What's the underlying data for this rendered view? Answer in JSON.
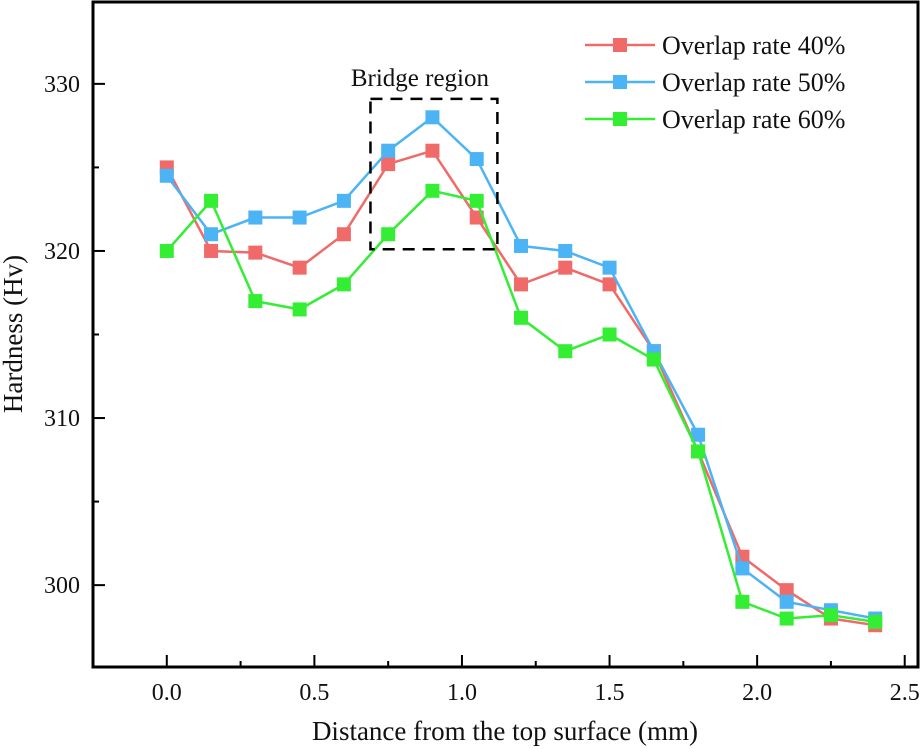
{
  "chart_data": {
    "type": "line",
    "title": "",
    "xlabel": "Distance from the top surface (mm)",
    "ylabel": "Hardness (Hv)",
    "xlim": [
      -0.25,
      2.545
    ],
    "ylim": [
      295.1,
      334.9
    ],
    "xticks": [
      0.0,
      0.5,
      1.0,
      1.5,
      2.0,
      2.5
    ],
    "xtick_labels": [
      "0.0",
      "0.5",
      "1.0",
      "1.5",
      "2.0",
      "2.5"
    ],
    "x_minor_ticks": [
      0.25,
      0.75,
      1.25,
      1.75,
      2.25
    ],
    "yticks": [
      300,
      310,
      320,
      330
    ],
    "ytick_labels": [
      "300",
      "310",
      "320",
      "330"
    ],
    "y_minor_ticks": [
      305,
      315,
      325
    ],
    "grid": false,
    "legend_position": "top-right",
    "x": [
      0.0,
      0.15,
      0.3,
      0.45,
      0.6,
      0.75,
      0.9,
      1.05,
      1.2,
      1.35,
      1.5,
      1.65,
      1.8,
      1.95,
      2.1,
      2.25,
      2.4
    ],
    "series": [
      {
        "name": "Overlap rate 40%",
        "color": "#f06a6a",
        "marker": "square",
        "values": [
          325.0,
          320.0,
          319.9,
          319.0,
          321.0,
          325.2,
          326.0,
          322.0,
          318.0,
          319.0,
          318.0,
          314.0,
          308.0,
          301.7,
          299.7,
          298.0,
          297.6
        ]
      },
      {
        "name": "Overlap rate 50%",
        "color": "#4cb3f5",
        "marker": "square",
        "values": [
          324.5,
          321.0,
          322.0,
          322.0,
          323.0,
          326.0,
          328.0,
          325.5,
          320.3,
          320.0,
          319.0,
          314.0,
          309.0,
          301.0,
          299.0,
          298.5,
          298.0
        ]
      },
      {
        "name": "Overlap rate 60%",
        "color": "#33ee33",
        "marker": "square",
        "values": [
          320.0,
          323.0,
          317.0,
          316.5,
          318.0,
          321.0,
          323.6,
          323.0,
          316.0,
          314.0,
          315.0,
          313.5,
          308.0,
          299.0,
          298.0,
          298.2,
          297.8
        ]
      }
    ],
    "annotations": [
      {
        "type": "dashed-box",
        "label": "Bridge region",
        "x_range": [
          0.69,
          1.12
        ],
        "y_range": [
          320.1,
          329.1
        ]
      }
    ]
  }
}
